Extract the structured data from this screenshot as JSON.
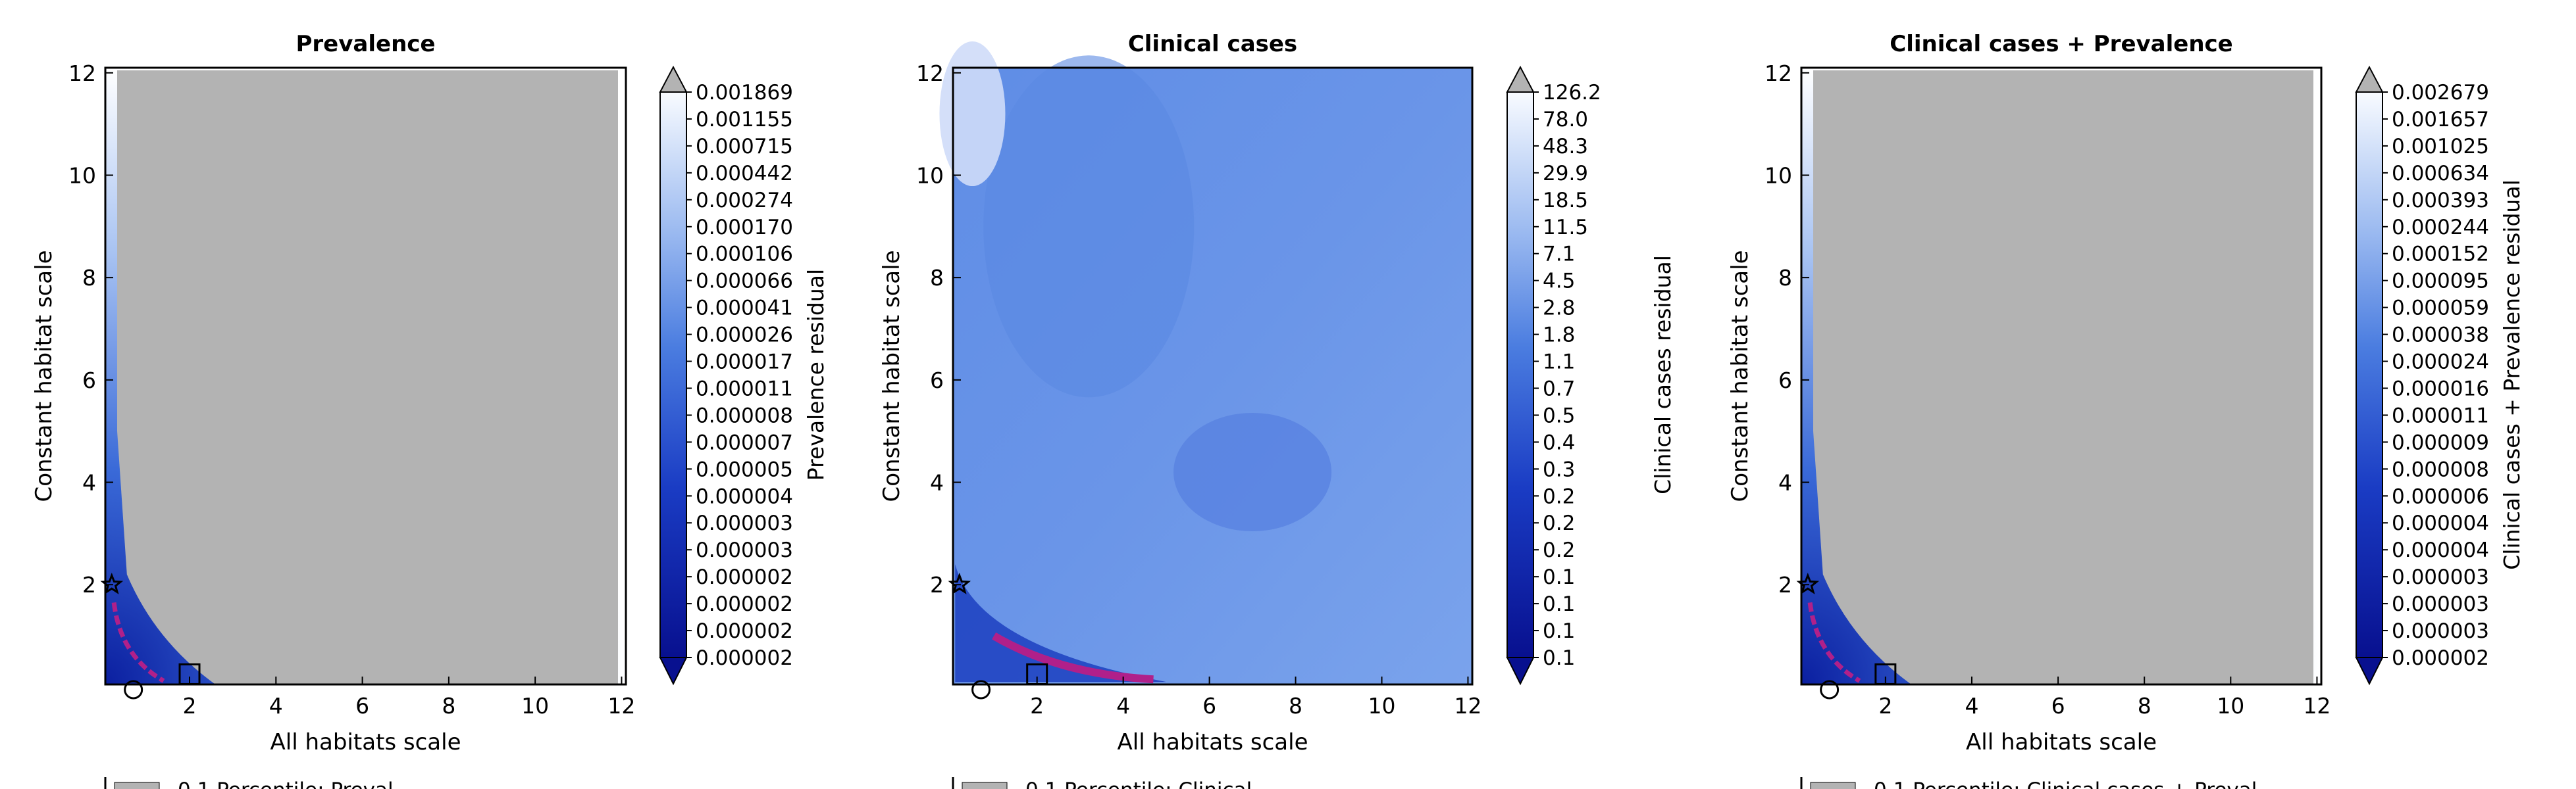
{
  "chart_data": [
    {
      "type": "heatmap",
      "title": "Prevalence",
      "xlabel": "All habitats scale",
      "ylabel": "Constant habitat scale",
      "xlim": [
        0.05,
        12.1
      ],
      "ylim": [
        0.05,
        12.1
      ],
      "xticks": [
        2,
        4,
        6,
        8,
        10,
        12
      ],
      "yticks": [
        2,
        4,
        6,
        8,
        10,
        12
      ],
      "colorbar_label": "Prevalence residual",
      "colorbar_levels": [
        "0.001869",
        "0.001155",
        "0.000715",
        "0.000442",
        "0.000274",
        "0.000170",
        "0.000106",
        "0.000066",
        "0.000041",
        "0.000026",
        "0.000017",
        "0.000011",
        "0.000008",
        "0.000007",
        "0.000005",
        "0.000004",
        "0.000003",
        "0.000003",
        "0.000002",
        "0.000002",
        "0.000002",
        "0.000002"
      ],
      "markers": {
        "star": [
          0.2,
          2.0
        ],
        "square": [
          2.0,
          0.25
        ],
        "circle": [
          0.7,
          0.05
        ]
      },
      "fill_color": "#b3b3b3",
      "legend_partial": "0.1 Percentile: Preval"
    },
    {
      "type": "heatmap",
      "title": "Clinical cases",
      "xlabel": "All habitats scale",
      "ylabel": "Constant habitat scale",
      "xlim": [
        0.05,
        12.1
      ],
      "ylim": [
        0.05,
        12.1
      ],
      "xticks": [
        2,
        4,
        6,
        8,
        10,
        12
      ],
      "yticks": [
        2,
        4,
        6,
        8,
        10,
        12
      ],
      "colorbar_label": "Clinical cases residual",
      "colorbar_levels": [
        "126.2",
        "78.0",
        "48.3",
        "29.9",
        "18.5",
        "11.5",
        "7.1",
        "4.5",
        "2.8",
        "1.8",
        "1.1",
        "0.7",
        "0.5",
        "0.4",
        "0.3",
        "0.2",
        "0.2",
        "0.2",
        "0.1",
        "0.1",
        "0.1",
        "0.1"
      ],
      "markers": {
        "star": [
          0.2,
          2.0
        ],
        "square": [
          2.0,
          0.25
        ],
        "circle": [
          0.7,
          0.05
        ]
      },
      "fill_color": "#6b97e8",
      "legend_partial": "0.1 Percentile: Clinical"
    },
    {
      "type": "heatmap",
      "title": "Clinical cases + Prevalence",
      "xlabel": "All habitats scale",
      "ylabel": "Constant habitat scale",
      "xlim": [
        0.05,
        12.1
      ],
      "ylim": [
        0.05,
        12.1
      ],
      "xticks": [
        2,
        4,
        6,
        8,
        10,
        12
      ],
      "yticks": [
        2,
        4,
        6,
        8,
        10,
        12
      ],
      "colorbar_label": "Clinical cases + Prevalence residual",
      "colorbar_levels": [
        "0.002679",
        "0.001657",
        "0.001025",
        "0.000634",
        "0.000393",
        "0.000244",
        "0.000152",
        "0.000095",
        "0.000059",
        "0.000038",
        "0.000024",
        "0.000016",
        "0.000011",
        "0.000009",
        "0.000008",
        "0.000006",
        "0.000004",
        "0.000004",
        "0.000003",
        "0.000003",
        "0.000003",
        "0.000002"
      ],
      "markers": {
        "star": [
          0.2,
          2.0
        ],
        "square": [
          2.0,
          0.25
        ],
        "circle": [
          0.7,
          0.05
        ]
      },
      "fill_color": "#b3b3b3",
      "legend_partial": "0.1 Percentile: Clinical cases + Preval"
    }
  ],
  "colors": {
    "grey": "#b3b3b3",
    "dark_blue": "#08108f",
    "light": "#f4f7fd",
    "magenta": "#b0208a"
  }
}
